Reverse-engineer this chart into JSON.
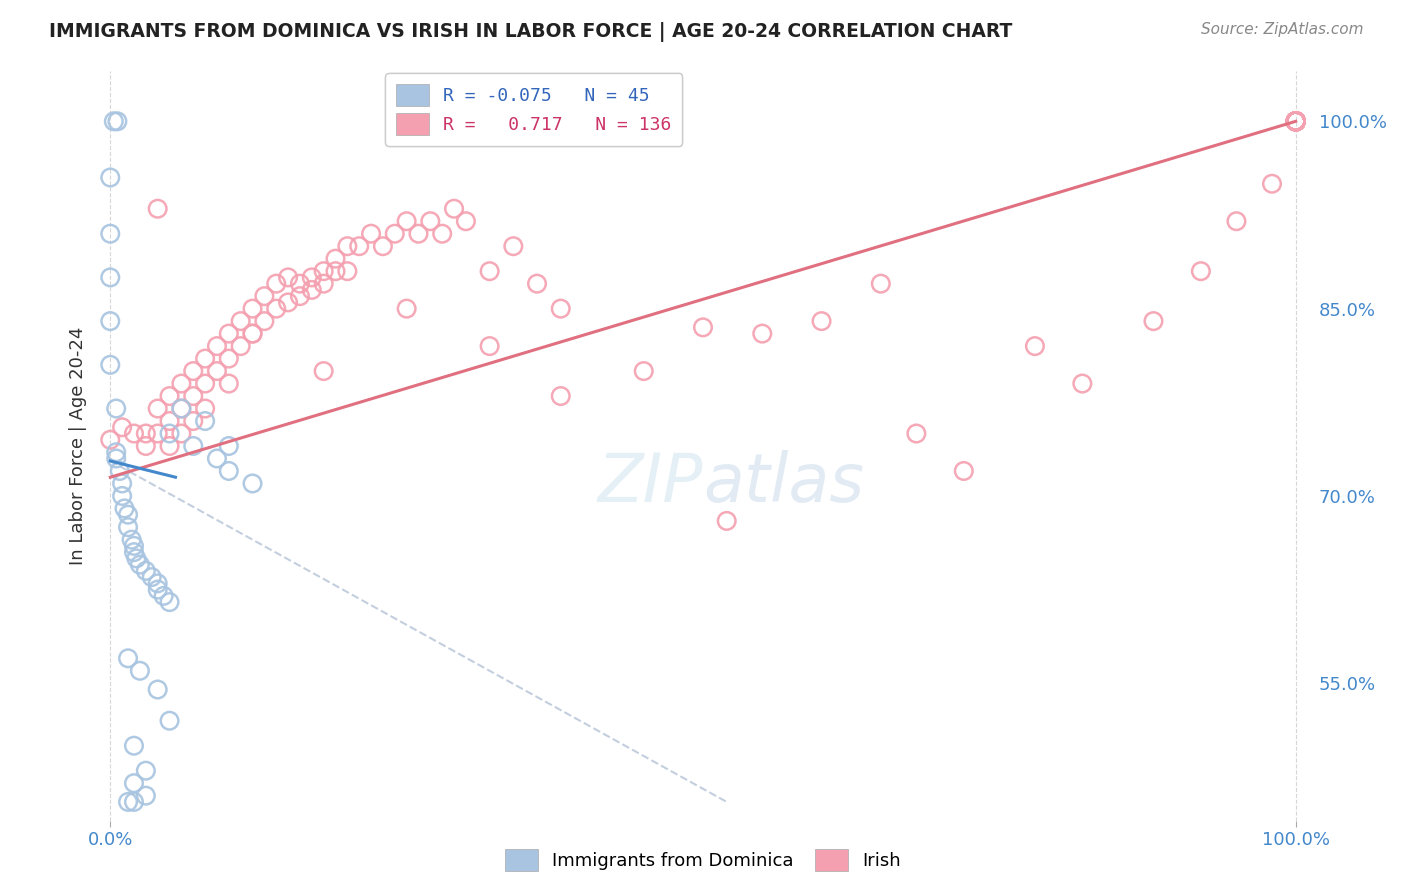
{
  "title": "IMMIGRANTS FROM DOMINICA VS IRISH IN LABOR FORCE | AGE 20-24 CORRELATION CHART",
  "source": "Source: ZipAtlas.com",
  "ylabel": "In Labor Force | Age 20-24",
  "xlim": [
    0.0,
    1.0
  ],
  "ylim": [
    0.45,
    1.03
  ],
  "yticks": [
    0.55,
    0.7,
    0.85,
    1.0
  ],
  "ytick_labels": [
    "55.0%",
    "70.0%",
    "85.0%",
    "100.0%"
  ],
  "xtick_labels": [
    "0.0%",
    "100.0%"
  ],
  "xticks": [
    0.0,
    1.0
  ],
  "legend_R_dominica": "-0.075",
  "legend_N_dominica": "45",
  "legend_R_irish": "0.717",
  "legend_N_irish": "136",
  "dominica_color": "#a8c4e0",
  "irish_color": "#f4a0b0",
  "dominica_trend_solid_color": "#4488cc",
  "dominica_trend_dash_color": "#aabbd0",
  "irish_trend_color": "#e07080",
  "background_color": "#ffffff",
  "tick_color": "#4488cc",
  "title_color": "#222222",
  "source_color": "#888888",
  "legend_text_dom_color": "#3366bb",
  "legend_text_irish_color": "#cc3366",
  "dom_scatter_x": [
    0.003,
    0.006,
    0.0,
    0.0,
    0.0,
    0.0,
    0.0,
    0.005,
    0.005,
    0.005,
    0.008,
    0.01,
    0.01,
    0.012,
    0.015,
    0.015,
    0.018,
    0.02,
    0.02,
    0.022,
    0.025,
    0.03,
    0.035,
    0.04,
    0.04,
    0.045,
    0.05,
    0.05,
    0.06,
    0.07,
    0.08,
    0.09,
    0.1,
    0.1,
    0.12,
    0.015,
    0.025,
    0.04,
    0.05,
    0.02,
    0.03,
    0.02,
    0.03,
    0.015,
    0.02
  ],
  "dom_scatter_y": [
    1.0,
    1.0,
    0.955,
    0.91,
    0.875,
    0.84,
    0.805,
    0.77,
    0.735,
    0.73,
    0.72,
    0.71,
    0.7,
    0.69,
    0.685,
    0.675,
    0.665,
    0.66,
    0.655,
    0.65,
    0.645,
    0.64,
    0.635,
    0.63,
    0.625,
    0.62,
    0.615,
    0.75,
    0.77,
    0.74,
    0.76,
    0.73,
    0.74,
    0.72,
    0.71,
    0.57,
    0.56,
    0.545,
    0.52,
    0.5,
    0.48,
    0.47,
    0.46,
    0.455,
    0.455
  ],
  "irish_scatter_x": [
    0.0,
    0.01,
    0.02,
    0.03,
    0.03,
    0.04,
    0.04,
    0.05,
    0.05,
    0.05,
    0.06,
    0.06,
    0.06,
    0.07,
    0.07,
    0.07,
    0.08,
    0.08,
    0.08,
    0.09,
    0.09,
    0.1,
    0.1,
    0.1,
    0.11,
    0.11,
    0.12,
    0.12,
    0.13,
    0.13,
    0.14,
    0.14,
    0.15,
    0.15,
    0.16,
    0.16,
    0.17,
    0.17,
    0.18,
    0.18,
    0.19,
    0.19,
    0.2,
    0.2,
    0.21,
    0.22,
    0.23,
    0.24,
    0.25,
    0.26,
    0.27,
    0.28,
    0.29,
    0.3,
    0.32,
    0.34,
    0.36,
    0.38,
    0.04,
    0.12,
    0.18,
    0.25,
    0.32,
    0.38,
    0.45,
    0.5,
    0.52,
    0.55,
    0.6,
    0.65,
    0.68,
    0.72,
    0.78,
    0.82,
    0.88,
    0.92,
    0.95,
    0.98,
    1.0,
    1.0,
    1.0,
    1.0,
    1.0,
    1.0,
    1.0,
    1.0,
    1.0,
    1.0,
    1.0,
    1.0,
    1.0,
    1.0,
    1.0,
    1.0,
    1.0,
    1.0,
    1.0,
    1.0,
    1.0,
    1.0,
    1.0,
    1.0,
    1.0,
    1.0,
    1.0,
    1.0,
    1.0,
    1.0,
    1.0,
    1.0,
    1.0,
    1.0,
    1.0,
    1.0,
    1.0,
    1.0,
    1.0,
    1.0,
    1.0,
    1.0,
    1.0,
    1.0,
    1.0,
    1.0,
    1.0,
    1.0,
    1.0,
    1.0,
    1.0,
    1.0,
    1.0,
    1.0,
    1.0,
    1.0,
    1.0,
    1.0
  ],
  "irish_scatter_y": [
    0.745,
    0.755,
    0.75,
    0.75,
    0.74,
    0.77,
    0.75,
    0.78,
    0.76,
    0.74,
    0.79,
    0.77,
    0.75,
    0.8,
    0.78,
    0.76,
    0.81,
    0.79,
    0.77,
    0.82,
    0.8,
    0.83,
    0.81,
    0.79,
    0.84,
    0.82,
    0.85,
    0.83,
    0.86,
    0.84,
    0.87,
    0.85,
    0.875,
    0.855,
    0.87,
    0.86,
    0.875,
    0.865,
    0.88,
    0.87,
    0.89,
    0.88,
    0.9,
    0.88,
    0.9,
    0.91,
    0.9,
    0.91,
    0.92,
    0.91,
    0.92,
    0.91,
    0.93,
    0.92,
    0.88,
    0.9,
    0.87,
    0.85,
    0.93,
    0.83,
    0.8,
    0.85,
    0.82,
    0.78,
    0.8,
    0.835,
    0.68,
    0.83,
    0.84,
    0.87,
    0.75,
    0.72,
    0.82,
    0.79,
    0.84,
    0.88,
    0.92,
    0.95,
    1.0,
    1.0,
    1.0,
    1.0,
    1.0,
    1.0,
    1.0,
    1.0,
    1.0,
    1.0,
    1.0,
    1.0,
    1.0,
    1.0,
    1.0,
    1.0,
    1.0,
    1.0,
    1.0,
    1.0,
    1.0,
    1.0,
    1.0,
    1.0,
    1.0,
    1.0,
    1.0,
    1.0,
    1.0,
    1.0,
    1.0,
    1.0,
    1.0,
    1.0,
    1.0,
    1.0,
    1.0,
    1.0,
    1.0,
    1.0,
    1.0,
    1.0,
    1.0,
    1.0,
    1.0,
    1.0,
    1.0,
    1.0,
    1.0,
    1.0,
    1.0,
    1.0,
    1.0,
    1.0,
    1.0,
    1.0,
    1.0,
    1.0
  ],
  "irish_trend_x0": 0.0,
  "irish_trend_y0": 0.715,
  "irish_trend_x1": 1.0,
  "irish_trend_y1": 1.0,
  "dom_trend_solid_x0": 0.0,
  "dom_trend_solid_y0": 0.728,
  "dom_trend_solid_x1": 0.055,
  "dom_trend_solid_y1": 0.715,
  "dom_trend_dash_x0": 0.0,
  "dom_trend_dash_y0": 0.728,
  "dom_trend_dash_x1": 0.52,
  "dom_trend_dash_y1": 0.455
}
